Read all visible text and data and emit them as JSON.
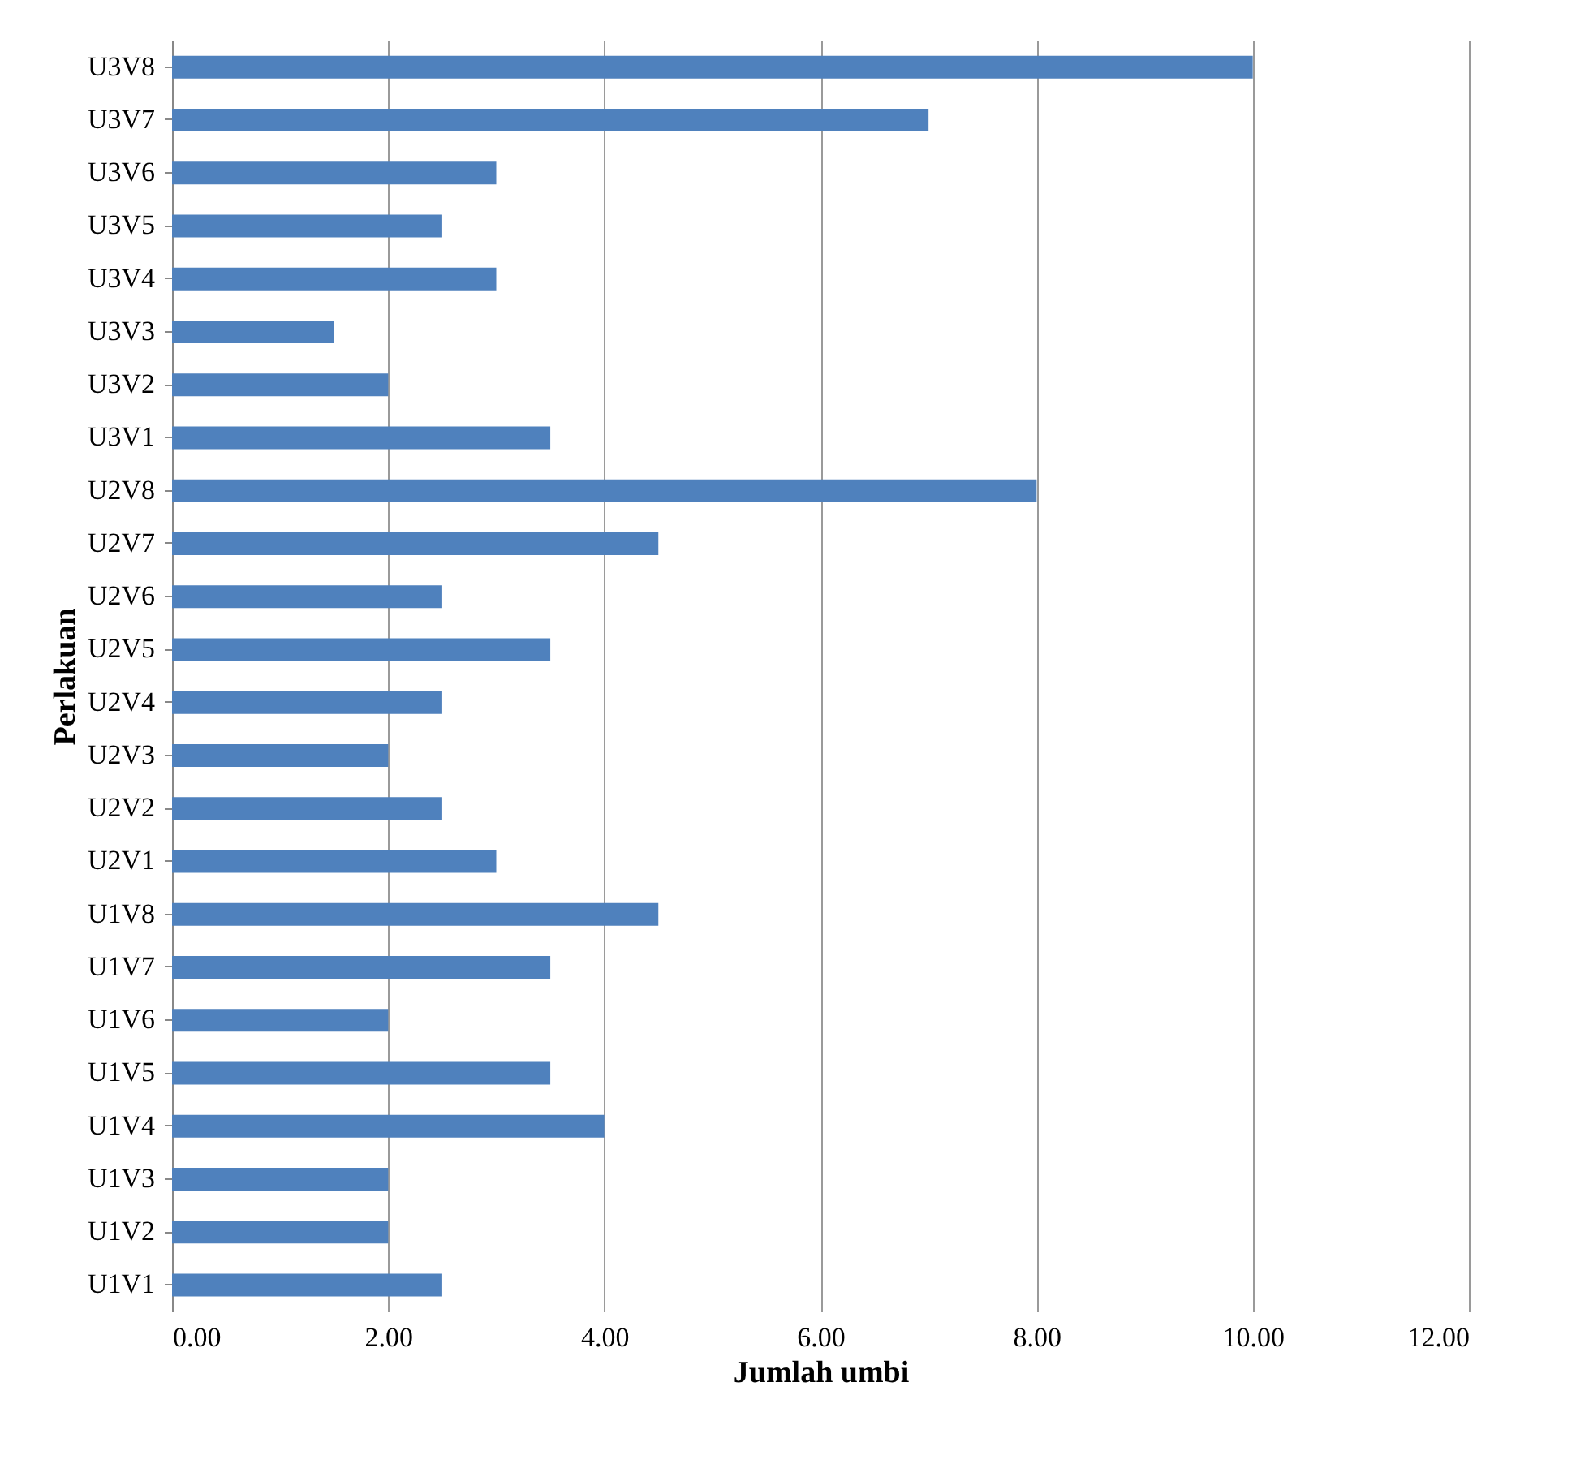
{
  "chart_data": {
    "type": "bar",
    "orientation": "horizontal",
    "xlabel": "Jumlah umbi",
    "ylabel": "Perlakuan",
    "categories": [
      "U3V8",
      "U3V7",
      "U3V6",
      "U3V5",
      "U3V4",
      "U3V3",
      "U3V2",
      "U3V1",
      "U2V8",
      "U2V7",
      "U2V6",
      "U2V5",
      "U2V4",
      "U2V3",
      "U2V2",
      "U2V1",
      "U1V8",
      "U1V7",
      "U1V6",
      "U1V5",
      "U1V4",
      "U1V3",
      "U1V2",
      "U1V1"
    ],
    "values": [
      10,
      7,
      3,
      2.5,
      3,
      1.5,
      2,
      3.5,
      8,
      4.5,
      2.5,
      3.5,
      2.5,
      2,
      2.5,
      3,
      4.5,
      3.5,
      2,
      3.5,
      4,
      2,
      2,
      2.5
    ],
    "color": "#4f81bd",
    "xlim": [
      0,
      12
    ],
    "xticks": [
      {
        "value": 0,
        "label": "0.00"
      },
      {
        "value": 2,
        "label": "2.00"
      },
      {
        "value": 4,
        "label": "4.00"
      },
      {
        "value": 6,
        "label": "6.00"
      },
      {
        "value": 8,
        "label": "8.00"
      },
      {
        "value": 10,
        "label": "10.00"
      },
      {
        "value": 12,
        "label": "12.00"
      }
    ],
    "grid": "x"
  }
}
